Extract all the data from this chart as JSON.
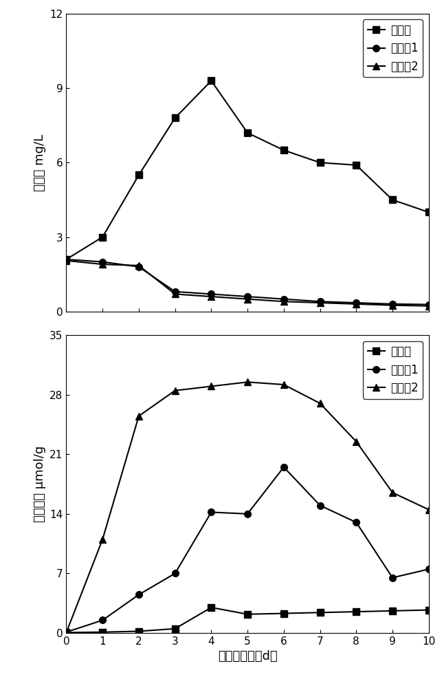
{
  "x": [
    0,
    1,
    2,
    3,
    4,
    5,
    6,
    7,
    8,
    9,
    10
  ],
  "top": {
    "ylabel": "氯含量 mg/L",
    "ylim": [
      0,
      12
    ],
    "yticks": [
      0,
      3,
      6,
      9,
      12
    ],
    "series": {
      "实施例": [
        2.1,
        3.0,
        5.5,
        7.8,
        9.3,
        7.2,
        6.5,
        6.0,
        5.9,
        4.5,
        4.0
      ],
      "对照例1": [
        2.1,
        2.0,
        1.8,
        0.8,
        0.7,
        0.6,
        0.5,
        0.4,
        0.35,
        0.3,
        0.28
      ],
      "对照例2": [
        2.05,
        1.9,
        1.85,
        0.7,
        0.6,
        0.5,
        0.4,
        0.35,
        0.3,
        0.25,
        0.22
      ]
    }
  },
  "bottom": {
    "ylabel": "乙醇含量 µmol/g",
    "xlabel": "直播后天数（d）",
    "ylim": [
      0,
      35
    ],
    "yticks": [
      0,
      7,
      14,
      21,
      28,
      35
    ],
    "series": {
      "实施例": [
        0.05,
        0.1,
        0.2,
        0.5,
        3.0,
        2.2,
        2.3,
        2.4,
        2.5,
        2.6,
        2.7
      ],
      "对照例1": [
        0.1,
        1.5,
        4.5,
        7.0,
        14.2,
        14.0,
        19.5,
        15.0,
        13.0,
        6.5,
        7.5
      ],
      "对照例2": [
        0.05,
        11.0,
        25.5,
        28.5,
        29.0,
        29.5,
        29.2,
        27.0,
        22.5,
        16.5,
        14.5
      ]
    }
  },
  "legend_labels": [
    "实施例",
    "对照例1",
    "对照例2"
  ],
  "markers": [
    "s",
    "o",
    "^"
  ],
  "line_color": "#000000",
  "markersize": 7,
  "linewidth": 1.5,
  "fontsize_label": 13,
  "fontsize_tick": 11,
  "fontsize_legend": 12
}
